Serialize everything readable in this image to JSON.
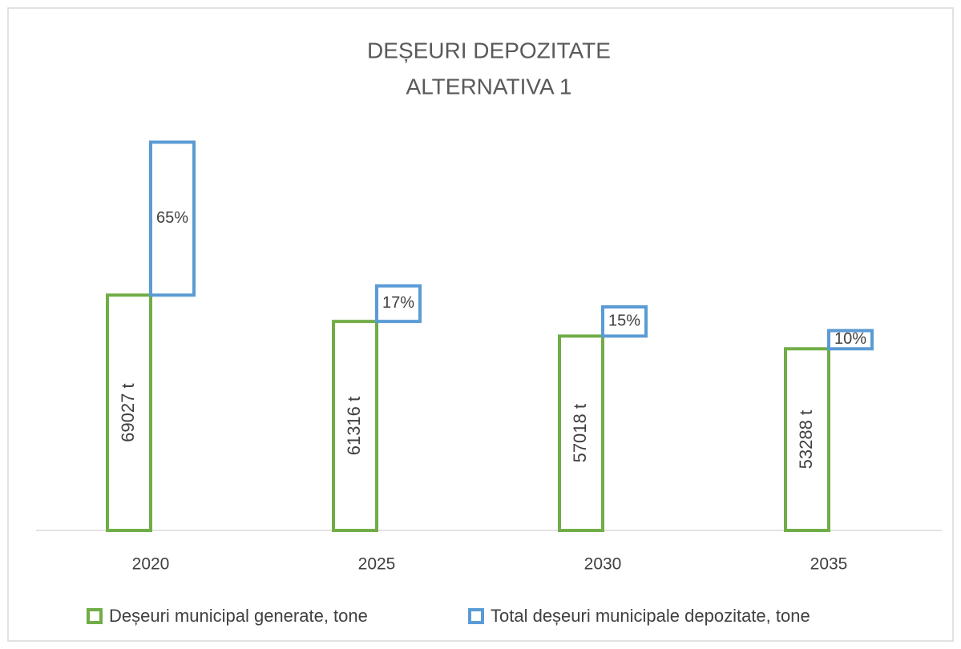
{
  "chart_data": {
    "type": "bar",
    "title": [
      "DEȘEURI DEPOZITATE",
      "ALTERNATIVA 1"
    ],
    "categories": [
      "2020",
      "2025",
      "2030",
      "2035"
    ],
    "series": [
      {
        "name": "Deșeuri municipal generate, tone",
        "color": "#70ad47",
        "values": [
          69027,
          61316,
          57018,
          53288
        ],
        "value_labels": [
          "69027 t",
          "61316 t",
          "57018 t",
          "53288 t"
        ]
      },
      {
        "name": "Total deșeuri municipale depozitate, tone",
        "color": "#5b9bd5",
        "values": [
          65,
          17,
          15,
          10
        ],
        "value_labels": [
          "65%",
          "17%",
          "15%",
          "10%"
        ]
      }
    ],
    "ylim": [
      0,
      114000
    ],
    "legend": "bottom"
  }
}
